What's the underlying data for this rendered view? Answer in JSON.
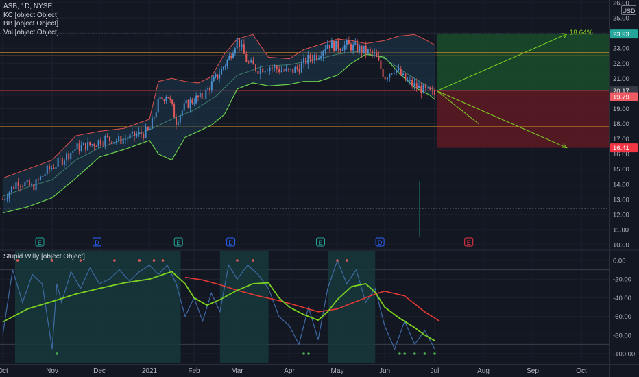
{
  "legend": {
    "main": "ASB, 1D, NYSE",
    "kc": "KC [object Object]",
    "bb": "BB [object Object]",
    "vol": "Vol [object Object]",
    "sub": "Stupid Willy [object Object]"
  },
  "currency_badge": "USD",
  "colors": {
    "background": "#131722",
    "grid": "#1e222d",
    "axis_text": "#b2b5be",
    "candle_up": "#4a8fd0",
    "candle_down": "#e05a5a",
    "bb_upper": "#e05050",
    "bb_lower": "#6bd04a",
    "kc_mid": "#3f7d6f",
    "level_orange": "#d38a2a",
    "profit_zone": "#1a4a2a",
    "loss_zone": "#5a1a24",
    "oscillator": "#3e6aa5",
    "signal_green": "#7ed321",
    "signal_red": "#e53935",
    "session_fill": "#173a3c"
  },
  "chart_data": [
    {
      "type": "line",
      "title": "ASB, 1D, NYSE",
      "subtitle": "",
      "xlabel": "",
      "ylabel": "",
      "x_ticks": [
        "Oct",
        "Nov",
        "Dec",
        "2021",
        "Feb",
        "Mar",
        "Apr",
        "May",
        "Jun",
        "Jul",
        "Aug",
        "Sep",
        "Oct"
      ],
      "y_ticks": [
        "10.00",
        "11.00",
        "12.00",
        "13.00",
        "14.00",
        "15.00",
        "16.00",
        "17.00",
        "18.00",
        "19.00",
        "20.00",
        "21.00",
        "22.00",
        "23.00",
        "24.00",
        "25.00",
        "26.00"
      ],
      "ylim": [
        10,
        26
      ],
      "grid": true,
      "x_month_index": [
        0,
        1,
        2,
        3,
        4,
        5,
        6,
        7,
        8,
        9,
        10,
        11,
        12
      ],
      "series": [
        {
          "name": "",
          "role": "close",
          "x": [
            0.0,
            0.3,
            0.6,
            0.9,
            1.2,
            1.5,
            1.8,
            2.1,
            2.4,
            2.7,
            3.0,
            3.2,
            3.4,
            3.6,
            3.8,
            4.0,
            4.2,
            4.4,
            4.6,
            4.8,
            5.0,
            5.2,
            5.4,
            5.6,
            5.8,
            6.0,
            6.2,
            6.4,
            6.6,
            6.8,
            7.0,
            7.2,
            7.4,
            7.6,
            7.8,
            8.0,
            8.2,
            8.4,
            8.6,
            8.8,
            9.0
          ],
          "values": [
            13.0,
            14.2,
            13.8,
            14.9,
            15.6,
            16.4,
            16.6,
            17.0,
            16.9,
            17.2,
            17.5,
            19.4,
            20.0,
            18.2,
            19.2,
            19.6,
            19.8,
            20.6,
            21.4,
            22.3,
            23.6,
            22.0,
            21.6,
            21.8,
            21.6,
            21.4,
            21.7,
            22.3,
            22.6,
            23.3,
            23.1,
            23.2,
            23.0,
            22.8,
            22.5,
            21.1,
            21.7,
            20.9,
            20.5,
            20.2,
            19.9
          ]
        },
        {
          "name": "",
          "role": "bb-upper",
          "x": [
            0.0,
            0.5,
            1.0,
            1.5,
            2.0,
            2.5,
            3.0,
            3.2,
            3.5,
            3.8,
            4.1,
            4.4,
            4.7,
            5.0,
            5.3,
            5.6,
            6.0,
            6.3,
            6.6,
            7.0,
            7.3,
            7.6,
            8.0,
            8.3,
            8.6,
            8.9,
            9.0
          ],
          "values": [
            14.4,
            15.0,
            15.6,
            17.2,
            17.5,
            17.7,
            18.3,
            20.8,
            21.0,
            20.8,
            20.7,
            21.1,
            22.6,
            23.6,
            23.9,
            22.4,
            22.3,
            22.9,
            23.2,
            23.6,
            23.5,
            23.3,
            23.5,
            23.8,
            23.9,
            23.4,
            23.2
          ]
        },
        {
          "name": "",
          "role": "bb-lower",
          "x": [
            0.0,
            0.5,
            1.0,
            1.5,
            2.0,
            2.5,
            3.0,
            3.2,
            3.5,
            3.8,
            4.1,
            4.4,
            4.7,
            5.0,
            5.3,
            5.6,
            6.0,
            6.3,
            6.6,
            7.0,
            7.3,
            7.6,
            8.0,
            8.3,
            8.6,
            8.9,
            9.0
          ],
          "values": [
            12.1,
            12.5,
            13.1,
            14.4,
            15.8,
            16.3,
            16.9,
            16.0,
            15.6,
            17.1,
            17.5,
            17.9,
            18.6,
            20.3,
            20.7,
            20.5,
            20.6,
            20.8,
            20.8,
            21.2,
            22.0,
            22.6,
            22.4,
            21.3,
            20.4,
            19.9,
            19.6
          ]
        },
        {
          "name": "",
          "role": "kc-mid",
          "x": [
            0.0,
            0.5,
            1.0,
            1.5,
            2.0,
            2.5,
            3.0,
            3.5,
            4.0,
            4.5,
            5.0,
            5.5,
            6.0,
            6.5,
            7.0,
            7.5,
            8.0,
            8.5,
            9.0
          ],
          "values": [
            13.2,
            13.8,
            14.3,
            15.6,
            16.4,
            17.0,
            17.6,
            18.3,
            18.9,
            19.8,
            21.2,
            21.8,
            21.9,
            22.2,
            22.6,
            22.8,
            22.3,
            21.2,
            20.2
          ]
        }
      ],
      "levels": [
        22.7,
        22.5,
        20.17,
        19.9,
        17.8
      ],
      "price_labels": [
        {
          "text": "23.93",
          "value": 23.93,
          "color": "#26a69a"
        },
        {
          "text": "20.17",
          "value": 20.17,
          "color": "#363a45"
        },
        {
          "text": "19.79",
          "value": 19.79,
          "color": "#f05b63"
        },
        {
          "text": "16.41",
          "value": 16.41,
          "color": "#f23645"
        }
      ],
      "position": {
        "entry": 20.17,
        "target": 23.93,
        "stop": 16.41,
        "start_month": 9.05,
        "end_month": 12.3,
        "target_label": "18.64%"
      },
      "events": [
        {
          "label": "E",
          "month": 0.75,
          "color": "#26a69a"
        },
        {
          "label": "D",
          "month": 1.95,
          "color": "#2962ff"
        },
        {
          "label": "E",
          "month": 3.65,
          "color": "#26a69a"
        },
        {
          "label": "D",
          "month": 4.85,
          "color": "#2962ff"
        },
        {
          "label": "E",
          "month": 6.65,
          "color": "#26a69a"
        },
        {
          "label": "D",
          "month": 7.9,
          "color": "#2962ff"
        },
        {
          "label": "E",
          "month": 9.7,
          "color": "#f23645"
        }
      ]
    },
    {
      "type": "line",
      "title": "Stupid Willy [object Object]",
      "xlabel": "",
      "ylabel": "",
      "y_ticks": [
        "0.00",
        "-20.00",
        "-40.00",
        "-60.00",
        "-80.00",
        "-100.00"
      ],
      "ylim": [
        -107,
        8
      ],
      "grid": true,
      "shaded_periods": [
        [
          0.25,
          3.7
        ],
        [
          4.6,
          5.6
        ],
        [
          6.8,
          7.8
        ]
      ],
      "series": [
        {
          "name": "",
          "role": "oscillator",
          "x": [
            0.0,
            0.2,
            0.4,
            0.6,
            0.8,
            1.0,
            1.1,
            1.2,
            1.4,
            1.6,
            1.8,
            2.0,
            2.2,
            2.4,
            2.6,
            2.8,
            3.0,
            3.2,
            3.4,
            3.6,
            3.8,
            4.0,
            4.2,
            4.4,
            4.6,
            4.8,
            5.0,
            5.2,
            5.4,
            5.6,
            5.8,
            6.0,
            6.2,
            6.4,
            6.6,
            6.8,
            7.0,
            7.2,
            7.4,
            7.6,
            7.8,
            8.0,
            8.2,
            8.4,
            8.6,
            8.8,
            9.0
          ],
          "values": [
            -80.0,
            -10.0,
            -45.0,
            -15.0,
            -25.0,
            -95.0,
            -25.0,
            -45.0,
            -12.0,
            -30.0,
            -8.0,
            -25.0,
            -20.0,
            -10.0,
            -22.0,
            -12.0,
            -5.0,
            -15.0,
            -5.0,
            -25.0,
            -60.0,
            -40.0,
            -65.0,
            -35.0,
            -55.0,
            -5.0,
            -20.0,
            -5.0,
            -15.0,
            -30.0,
            -60.0,
            -70.0,
            -90.0,
            -50.0,
            -85.0,
            -30.0,
            0.0,
            -25.0,
            -10.0,
            -45.0,
            -30.0,
            -70.0,
            -95.0,
            -65.0,
            -90.0,
            -75.0,
            -95.0
          ]
        },
        {
          "name": "",
          "role": "signal",
          "x": [
            0.0,
            0.5,
            1.0,
            1.5,
            2.0,
            2.5,
            3.0,
            3.5,
            3.8,
            4.0,
            4.3,
            4.6,
            5.0,
            5.3,
            5.6,
            5.8,
            6.0,
            6.3,
            6.6,
            6.8,
            7.0,
            7.3,
            7.6,
            7.8,
            8.0,
            8.3,
            8.6,
            8.8,
            9.0
          ],
          "values": [
            -66.0,
            -52.0,
            -44.0,
            -36.0,
            -30.0,
            -24.0,
            -20.0,
            -12.0,
            -25.0,
            -40.0,
            -48.0,
            -42.0,
            -32.0,
            -25.0,
            -24.0,
            -40.0,
            -50.0,
            -58.0,
            -64.0,
            -55.0,
            -42.0,
            -28.0,
            -25.0,
            -34.0,
            -50.0,
            -62.0,
            -72.0,
            -80.0,
            -86.0
          ]
        },
        {
          "name": "",
          "role": "slow",
          "x": [
            3.8,
            4.2,
            4.6,
            5.0,
            5.4,
            5.8,
            6.2,
            6.6,
            7.0,
            7.4,
            7.8,
            8.0,
            8.4,
            8.8,
            9.1
          ],
          "values": [
            -18.0,
            -21.0,
            -26.0,
            -32.0,
            -38.0,
            -43.0,
            -49.0,
            -55.0,
            -52.0,
            -44.0,
            -36.0,
            -33.0,
            -38.0,
            -55.0,
            -65.0
          ]
        }
      ]
    }
  ]
}
